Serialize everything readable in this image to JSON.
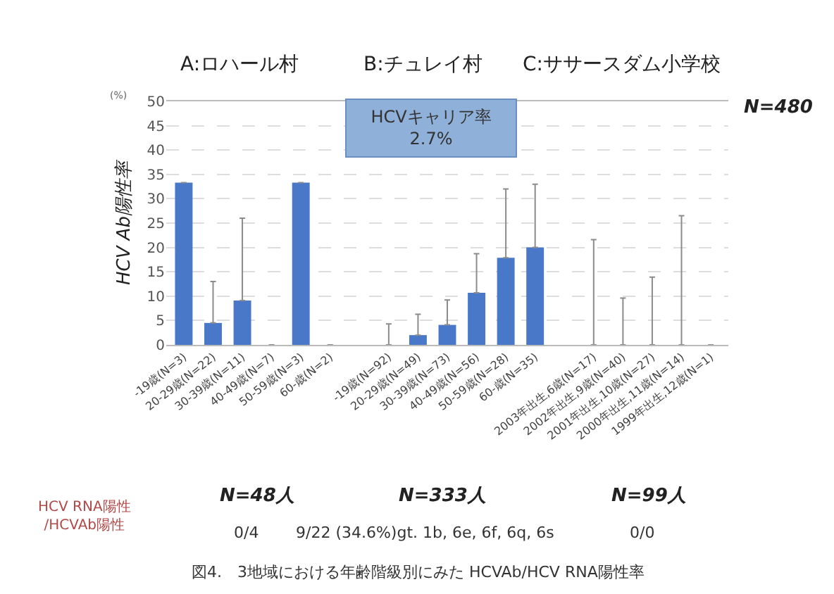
{
  "chart_data": {
    "type": "bar",
    "ylabel": "HCV Ab陽性率",
    "categories": [
      "-19歳(N=3)",
      "20-29歳(N=22)",
      "30-39歳(N=11)",
      "40-49歳(N=7)",
      "50-59歳(N=3)",
      "60-歳(N=2)",
      null,
      "-19歳(N=92)",
      "20-29歳(N=49)",
      "30-39歳(N=73)",
      "40-49歳(N=56)",
      "50-59歳(N=28)",
      "60-歳(N=35)",
      null,
      "2003年出生,6歳(N=17)",
      "2002年出生,9歳(N=40)",
      "2001年出生,10歳(N=27)",
      "2000年出生,11歳(N=14)",
      "1999年出生,12歳(N=1)"
    ],
    "values": [
      33.3,
      4.5,
      9.1,
      0,
      33.3,
      0,
      null,
      0,
      2.0,
      4.1,
      10.7,
      17.9,
      20.0,
      null,
      0,
      0,
      0,
      0,
      0
    ],
    "errors": [
      null,
      [
        4.5,
        13
      ],
      [
        9.1,
        26
      ],
      null,
      null,
      null,
      null,
      [
        0,
        4.3
      ],
      [
        2.0,
        6.3
      ],
      [
        4.1,
        9.2
      ],
      [
        10.7,
        18.7
      ],
      [
        17.9,
        32
      ],
      [
        20.0,
        33
      ],
      null,
      [
        0,
        21.6
      ],
      [
        0,
        9.6
      ],
      [
        0,
        13.9
      ],
      [
        0,
        26.5
      ],
      null
    ],
    "color": "#4a78c8",
    "ylim": [
      0,
      50
    ],
    "yticks": [
      0,
      5,
      10,
      15,
      20,
      25,
      30,
      35,
      40,
      45,
      50
    ],
    "grid": "y",
    "annotations": [
      "(%)",
      "A:ロハール村",
      "B:チュレイ村",
      "C:ササースダム小学校",
      "HCVキャリア率\n2.7%",
      "N=480",
      "HCV RNA陽性\n/HCVAb陽性",
      "N=48人",
      "N=333人",
      "N=99人",
      "0/4",
      "9/22 (34.6%)gt. 1b, 6e, 6f, 6q, 6s",
      "0/0",
      "図4.　3地域における年齢階級別にみた HCVAb/HCV RNA陽性率"
    ]
  }
}
